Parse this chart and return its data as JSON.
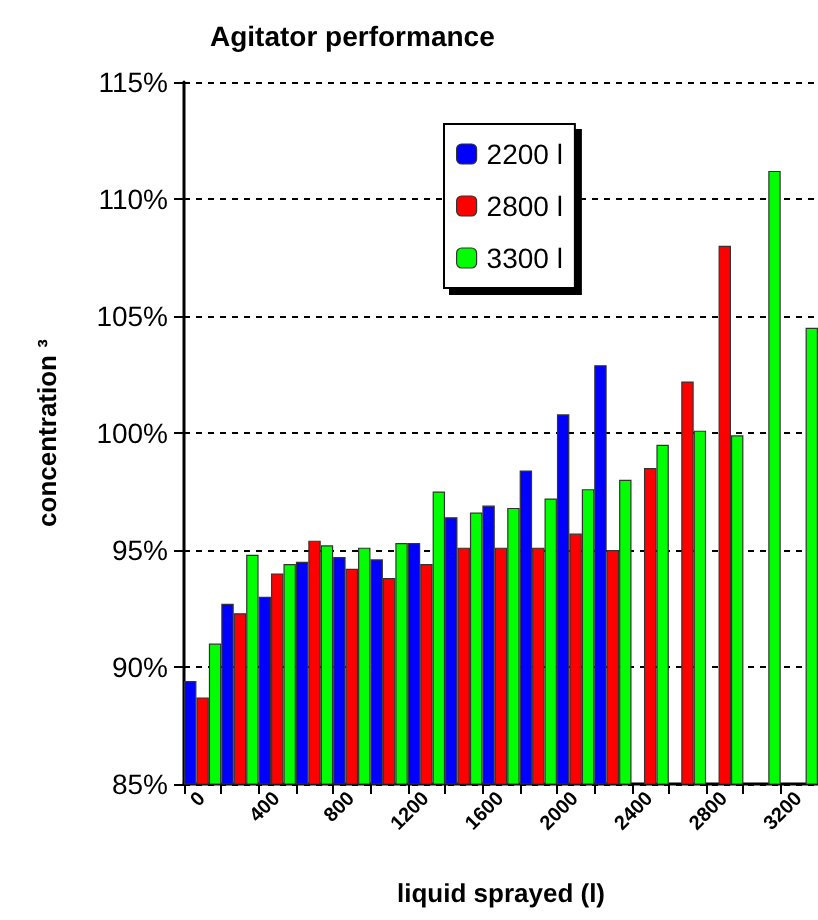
{
  "chart_data": {
    "type": "bar",
    "title": "Agitator performance",
    "xlabel": "liquid sprayed (l)",
    "ylabel": "concentration ³",
    "categories": [
      "0",
      null,
      "400",
      null,
      "800",
      null,
      "1200",
      null,
      "1600",
      null,
      "2000",
      null,
      "2400",
      null,
      "2800",
      null,
      "3200"
    ],
    "series": [
      {
        "name": "2200 l",
        "color": "#0000ff",
        "values": [
          89.4,
          92.7,
          93.0,
          94.5,
          94.7,
          94.6,
          95.3,
          96.4,
          96.9,
          98.4,
          100.8,
          102.9,
          null,
          null,
          null,
          null,
          null
        ]
      },
      {
        "name": "2800 l",
        "color": "#ff0000",
        "values": [
          88.7,
          92.3,
          94.0,
          95.4,
          94.2,
          93.8,
          94.4,
          95.1,
          95.1,
          95.1,
          95.7,
          95.0,
          98.5,
          102.2,
          108.0,
          null,
          null
        ]
      },
      {
        "name": "3300 l",
        "color": "#00ff00",
        "values": [
          91.0,
          94.8,
          94.4,
          95.2,
          95.1,
          95.3,
          97.5,
          96.6,
          96.8,
          97.2,
          97.6,
          98.0,
          99.5,
          100.1,
          99.9,
          111.2,
          104.5
        ]
      }
    ],
    "ylim": [
      85,
      115
    ],
    "yticks": [
      {
        "value": 85,
        "label": "85%"
      },
      {
        "value": 90,
        "label": "90%"
      },
      {
        "value": 95,
        "label": "95%"
      },
      {
        "value": 100,
        "label": "100%"
      },
      {
        "value": 105,
        "label": "105%"
      },
      {
        "value": 110,
        "label": "110%"
      },
      {
        "value": 115,
        "label": "115%"
      }
    ],
    "grid": "y",
    "legend": "top"
  }
}
